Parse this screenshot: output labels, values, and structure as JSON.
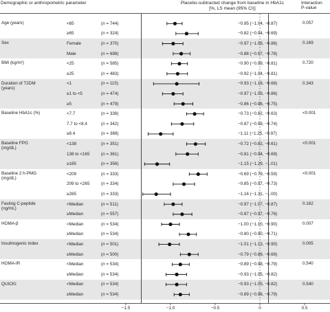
{
  "header": {
    "col1": "Demographic or anthropometric parameter",
    "col2_line1": "Placebo-subtracted change from baseline in HbA1c",
    "col2_line2": "[%, LS mean (95% CI)]",
    "col3_line1": "Interaction",
    "col3_line2": "P-value"
  },
  "chart_data": {
    "type": "forest",
    "x_axis": {
      "min": -1.5,
      "max": 0.5,
      "ticks": [
        "−1.5",
        "−1.0",
        "−0.5",
        "0",
        "0.5"
      ],
      "reference_line": 0
    },
    "groups": [
      {
        "label": "Age (years)",
        "p": "0.057",
        "shaded": false,
        "rows": [
          {
            "sub": "<65",
            "n": "744",
            "est": -0.95,
            "lo": -1.04,
            "hi": -0.87,
            "ci": "−0.95 (−1.04, −0.87)"
          },
          {
            "sub": "≥65",
            "n": "324",
            "est": -0.82,
            "lo": -0.94,
            "hi": -0.69,
            "ci": "−0.82 (−0.94, −0.69)"
          }
        ]
      },
      {
        "label": "Sex",
        "p": "0.169",
        "shaded": true,
        "rows": [
          {
            "sub": "Female",
            "n": "370",
            "est": -0.97,
            "lo": -1.09,
            "hi": -0.86,
            "ci": "−0.97 (−1.09, −0.86)"
          },
          {
            "sub": "Male",
            "n": "698",
            "est": -0.88,
            "lo": -0.97,
            "hi": -0.78,
            "ci": "−0.88 (−0.97, −0.78)"
          }
        ]
      },
      {
        "label": "BMI (kg/m²)",
        "p": "0.720",
        "shaded": false,
        "rows": [
          {
            "sub": "<25",
            "n": "585",
            "est": -0.9,
            "lo": -0.99,
            "hi": -0.81,
            "ci": "−0.90 (−0.99, −0.81)"
          },
          {
            "sub": "≥25",
            "n": "483",
            "est": -0.92,
            "lo": -1.04,
            "hi": -0.81,
            "ci": "−0.92 (−1.04, −0.81)"
          }
        ]
      },
      {
        "label": "Duration of T2DM|(years)",
        "p": "0.343",
        "shaded": true,
        "rows": [
          {
            "sub": "<1",
            "n": "115",
            "est": -0.93,
            "lo": -1.19,
            "hi": -0.68,
            "ci": "−0.93 (−1.19, −0.68)"
          },
          {
            "sub": "≥1 to <5",
            "n": "474",
            "est": -0.97,
            "lo": -1.09,
            "hi": -0.86,
            "ci": "−0.97 (−1.09, −0.86)"
          },
          {
            "sub": "≥5",
            "n": "479",
            "est": -0.86,
            "lo": -0.96,
            "hi": -0.75,
            "ci": "−0.86 (−0.96, −0.75)"
          }
        ]
      },
      {
        "label": "Baseline HbA1c (%)",
        "p": "<0.001",
        "shaded": false,
        "rows": [
          {
            "sub": "<7.7",
            "n": "338",
            "est": -0.73,
            "lo": -0.82,
            "hi": -0.63,
            "ci": "−0.73 (−0.82, −0.63)"
          },
          {
            "sub": "7.7 to <8.4",
            "n": "342",
            "est": -0.87,
            "lo": -0.99,
            "hi": -0.74,
            "ci": "−0.87 (−0.99, −0.74)"
          },
          {
            "sub": "≥8.4",
            "n": "388",
            "est": -1.11,
            "lo": -1.25,
            "hi": -0.97,
            "ci": "−1.11 (−1.25, −0.97)"
          }
        ]
      },
      {
        "label": "Baseline FPG|(mg/dL)",
        "p": "<0.001",
        "shaded": true,
        "rows": [
          {
            "sub": "<138",
            "n": "351",
            "est": -0.72,
            "lo": -0.82,
            "hi": -0.61,
            "ci": "−0.72 (−0.82, −0.61)"
          },
          {
            "sub": "138 to <165",
            "n": "361",
            "est": -0.81,
            "lo": -0.94,
            "hi": -0.69,
            "ci": "−0.81 (−0.94, −0.69)"
          },
          {
            "sub": "≥165",
            "n": "356",
            "est": -1.15,
            "lo": -1.29,
            "hi": -1.01,
            "ci": "−1.15 (−1.29, −1.01)"
          }
        ]
      },
      {
        "label": "Baseline 2 h-PMG|(mg/dL)",
        "p": "<0.001",
        "shaded": false,
        "rows": [
          {
            "sub": "<209",
            "n": "333",
            "est": -0.69,
            "lo": -0.79,
            "hi": -0.59,
            "ci": "−0.69 (−0.79, −0.59)"
          },
          {
            "sub": "209 to <265",
            "n": "334",
            "est": -0.85,
            "lo": -0.97,
            "hi": -0.73,
            "ci": "−0.85 (−0.97, −0.73)"
          },
          {
            "sub": "≥265",
            "n": "333",
            "est": -1.16,
            "lo": -1.31,
            "hi": -1.0,
            "ci": "−1.16 (−1.31, −1.00)"
          }
        ]
      },
      {
        "label": "Fasting C-peptide|(ng/mL)",
        "p": "0.162",
        "shaded": true,
        "rows": [
          {
            "sub": "<Median",
            "n": "511",
            "est": -0.97,
            "lo": -1.07,
            "hi": -0.87,
            "ci": "−0.97 (−1.07, −0.87)"
          },
          {
            "sub": "≥Median",
            "n": "557",
            "est": -0.87,
            "lo": -0.97,
            "hi": -0.76,
            "ci": "−0.87 (−0.97, −0.76)"
          }
        ]
      },
      {
        "label": "HOMA-β",
        "p": "0.007",
        "shaded": false,
        "rows": [
          {
            "sub": "<Median",
            "n": "534",
            "est": -1.0,
            "lo": -1.1,
            "hi": -0.9,
            "ci": "−1.00 (−1.10, −0.90)"
          },
          {
            "sub": "≥Median",
            "n": "534",
            "est": -0.8,
            "lo": -0.9,
            "hi": -0.71,
            "ci": "−0.80 (−0.90, −0.71)"
          }
        ]
      },
      {
        "label": "Insulinogenic index",
        "p": "0.005",
        "shaded": true,
        "rows": [
          {
            "sub": "<Median",
            "n": "501",
            "est": -1.01,
            "lo": -1.13,
            "hi": -0.9,
            "ci": "−1.01 (−1.13, −0.90)"
          },
          {
            "sub": "≥Median",
            "n": "500",
            "est": -0.79,
            "lo": -0.89,
            "hi": -0.69,
            "ci": "−0.79 (−0.89, −0.69)"
          }
        ]
      },
      {
        "label": "HOMA-IR",
        "p": "0.540",
        "shaded": false,
        "rows": [
          {
            "sub": "<Median",
            "n": "534",
            "est": -0.89,
            "lo": -0.98,
            "hi": -0.79,
            "ci": "−0.89 (−0.98, −0.79)"
          },
          {
            "sub": "≥Median",
            "n": "534",
            "est": -0.93,
            "lo": -1.05,
            "hi": -0.82,
            "ci": "−0.93 (−1.05, −0.82)"
          }
        ]
      },
      {
        "label": "QUICKI",
        "p": "0.540",
        "shaded": true,
        "rows": [
          {
            "sub": "<Median",
            "n": "534",
            "est": -0.93,
            "lo": -1.05,
            "hi": -0.82,
            "ci": "−0.93 (−1.05, −0.82)"
          },
          {
            "sub": "≥Median",
            "n": "534",
            "est": -0.89,
            "lo": -0.96,
            "hi": -0.79,
            "ci": "−0.89 (−0.96, −0.79)"
          }
        ]
      }
    ]
  }
}
